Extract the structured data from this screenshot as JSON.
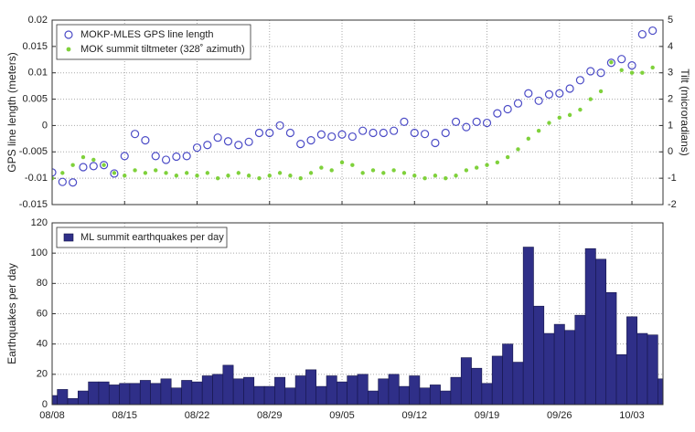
{
  "chart_data": [
    {
      "type": "scatter",
      "ylabel": "GPS line length (meters)",
      "y2label": "Tilt (microradians)",
      "x": [
        "08/08",
        "08/09",
        "08/10",
        "08/11",
        "08/12",
        "08/13",
        "08/14",
        "08/15",
        "08/16",
        "08/17",
        "08/18",
        "08/19",
        "08/20",
        "08/21",
        "08/22",
        "08/23",
        "08/24",
        "08/25",
        "08/26",
        "08/27",
        "08/28",
        "08/29",
        "08/30",
        "08/31",
        "09/01",
        "09/02",
        "09/03",
        "09/04",
        "09/05",
        "09/06",
        "09/07",
        "09/08",
        "09/09",
        "09/10",
        "09/11",
        "09/12",
        "09/13",
        "09/14",
        "09/15",
        "09/16",
        "09/17",
        "09/18",
        "09/19",
        "09/20",
        "09/21",
        "09/22",
        "09/23",
        "09/24",
        "09/25",
        "09/26",
        "09/27",
        "09/28",
        "09/29",
        "09/30",
        "10/01",
        "10/02",
        "10/03",
        "10/04",
        "10/05"
      ],
      "series": [
        {
          "name": "MOKP-MLES GPS line length",
          "color": "#4b4bc6",
          "marker": "open",
          "values": [
            -0.0089,
            -0.0107,
            -0.0108,
            -0.0079,
            -0.0077,
            -0.0075,
            -0.0091,
            -0.0058,
            -0.0016,
            -0.0028,
            -0.0058,
            -0.0065,
            -0.0059,
            -0.0058,
            -0.0042,
            -0.0037,
            -0.0023,
            -0.003,
            -0.0037,
            -0.0031,
            -0.0014,
            -0.0014,
            0,
            -0.0014,
            -0.0035,
            -0.0028,
            -0.0017,
            -0.0021,
            -0.0017,
            -0.0021,
            -0.001,
            -0.0014,
            -0.0014,
            -0.001,
            0.0007,
            -0.0014,
            -0.0016,
            -0.0033,
            -0.0014,
            0.0007,
            -0.0003,
            0.0007,
            0.0005,
            0.0023,
            0.0031,
            0.0042,
            0.0061,
            0.0047,
            0.0059,
            0.0061,
            0.007,
            0.0086,
            0.0103,
            0.01,
            0.0119,
            0.0126,
            0.0114,
            0.0173,
            0.018
          ]
        },
        {
          "name": "MOK summit tiltmeter (328˚ azimuth)",
          "color": "#7fd13b",
          "marker": "filled",
          "axis": "y2",
          "values": [
            -1.0,
            -0.8,
            -0.5,
            -0.2,
            -0.3,
            -0.5,
            -0.8,
            -0.9,
            -0.7,
            -0.8,
            -0.7,
            -0.8,
            -0.9,
            -0.8,
            -0.9,
            -0.8,
            -1.0,
            -0.9,
            -0.8,
            -0.9,
            -1.0,
            -0.9,
            -0.8,
            -0.9,
            -1.0,
            -0.8,
            -0.6,
            -0.7,
            -0.4,
            -0.5,
            -0.8,
            -0.7,
            -0.8,
            -0.7,
            -0.8,
            -0.9,
            -1.0,
            -0.9,
            -1.0,
            -0.9,
            -0.7,
            -0.6,
            -0.5,
            -0.4,
            -0.2,
            0.1,
            0.5,
            0.8,
            1.1,
            1.3,
            1.4,
            1.6,
            2.0,
            2.3,
            3.4,
            3.1,
            3.0,
            3.0,
            3.2
          ]
        }
      ],
      "xlim": [
        "08/08",
        "10/06"
      ],
      "xticks": [
        "08/08",
        "08/15",
        "08/22",
        "08/29",
        "09/05",
        "09/12",
        "09/19",
        "09/26",
        "10/03"
      ],
      "ylim": [
        -0.015,
        0.02
      ],
      "yticks": [
        -0.015,
        -0.01,
        -0.005,
        0,
        0.005,
        0.01,
        0.015,
        0.02
      ],
      "y2lim": [
        -2,
        5
      ],
      "y2ticks": [
        -2,
        -1,
        0,
        1,
        2,
        3,
        4,
        5
      ],
      "grid": true,
      "legend": "upper left"
    },
    {
      "type": "bar",
      "ylabel": "Earthquakes per day",
      "x": [
        "08/08",
        "08/09",
        "08/10",
        "08/11",
        "08/12",
        "08/13",
        "08/14",
        "08/15",
        "08/16",
        "08/17",
        "08/18",
        "08/19",
        "08/20",
        "08/21",
        "08/22",
        "08/23",
        "08/24",
        "08/25",
        "08/26",
        "08/27",
        "08/28",
        "08/29",
        "08/30",
        "08/31",
        "09/01",
        "09/02",
        "09/03",
        "09/04",
        "09/05",
        "09/06",
        "09/07",
        "09/08",
        "09/09",
        "09/10",
        "09/11",
        "09/12",
        "09/13",
        "09/14",
        "09/15",
        "09/16",
        "09/17",
        "09/18",
        "09/19",
        "09/20",
        "09/21",
        "09/22",
        "09/23",
        "09/24",
        "09/25",
        "09/26",
        "09/27",
        "09/28",
        "09/29",
        "09/30",
        "10/01",
        "10/02",
        "10/03",
        "10/04",
        "10/05",
        "10/06"
      ],
      "series": [
        {
          "name": "ML summit earthquakes per day",
          "color": "#2f2f88",
          "values": [
            6,
            10,
            4,
            9,
            15,
            15,
            13,
            14,
            14,
            16,
            14,
            17,
            11,
            16,
            15,
            19,
            20,
            26,
            17,
            18,
            12,
            12,
            18,
            11,
            19,
            23,
            12,
            19,
            15,
            19,
            20,
            9,
            17,
            20,
            12,
            19,
            11,
            13,
            9,
            18,
            31,
            24,
            14,
            32,
            40,
            28,
            104,
            65,
            47,
            53,
            49,
            59,
            103,
            96,
            74,
            33,
            58,
            47,
            46,
            17
          ]
        }
      ],
      "xlim": [
        "08/08",
        "10/06"
      ],
      "xticks": [
        "08/08",
        "08/15",
        "08/22",
        "08/29",
        "09/05",
        "09/12",
        "09/19",
        "09/26",
        "10/03"
      ],
      "ylim": [
        0,
        120
      ],
      "yticks": [
        0,
        20,
        40,
        60,
        80,
        100,
        120
      ],
      "grid": true,
      "legend": "upper left"
    }
  ]
}
